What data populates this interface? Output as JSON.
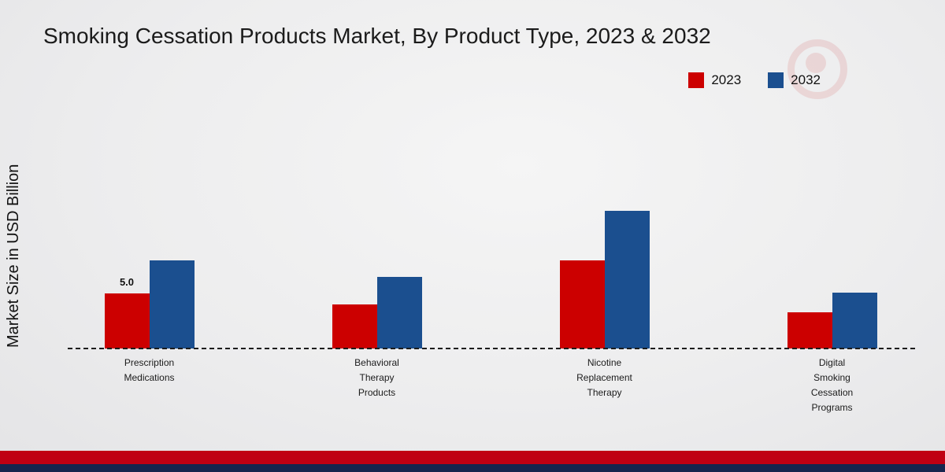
{
  "chart_data": {
    "type": "bar",
    "title": "Smoking Cessation Products Market, By Product Type, 2023 & 2032",
    "ylabel": "Market Size in USD Billion",
    "categories": [
      "Prescription Medications",
      "Behavioral Therapy Products",
      "Nicotine Replacement Therapy",
      "Digital Smoking Cessation Programs"
    ],
    "category_label_lines": [
      [
        "Prescription",
        "Medications"
      ],
      [
        "Behavioral",
        "Therapy",
        "Products"
      ],
      [
        "Nicotine",
        "Replacement",
        "Therapy"
      ],
      [
        "Digital",
        "Smoking",
        "Cessation",
        "Programs"
      ]
    ],
    "series": [
      {
        "name": "2023",
        "color": "#cc0000",
        "values": [
          5.0,
          4.0,
          8.0,
          3.3
        ]
      },
      {
        "name": "2032",
        "color": "#1b4f8f",
        "values": [
          8.0,
          6.5,
          12.5,
          5.1
        ]
      }
    ],
    "data_labels": [
      {
        "series": "2023",
        "category_index": 0,
        "text": "5.0"
      }
    ],
    "ylim": [
      0,
      14
    ],
    "grid": false,
    "legend_position": "top-right",
    "baseline_style": "dashed"
  },
  "colors": {
    "footer_red": "#c00013",
    "footer_navy": "#16254e",
    "background": "#ededee"
  }
}
